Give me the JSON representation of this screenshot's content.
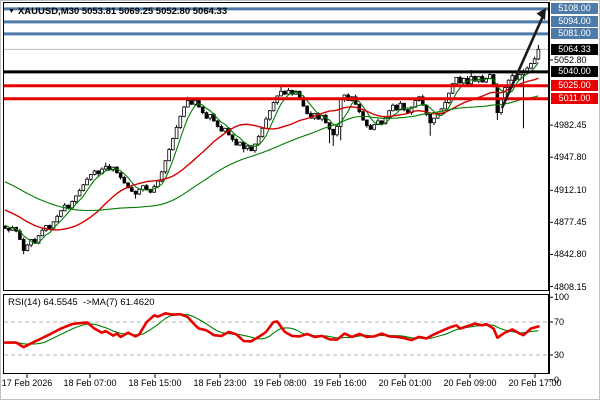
{
  "window": {
    "dropdown_icon": "▼",
    "symbol_period": "XAUUSD,M30",
    "ohlc_text": "5053.81 5069.25 5052.80 5064.33"
  },
  "colors": {
    "resistance": "#4d7aa8",
    "support": "#e80000",
    "pivot": "#000000",
    "bid_line": "#bbbbbb",
    "ma_fast": "#007c00",
    "ma_mid": "#d40000",
    "ma_slow": "#007c00",
    "candle_up": "#ffffff",
    "candle_down": "#000000",
    "candle_stroke": "#000000",
    "rsi_line": "#e80000",
    "rsi_ma": "#007c00",
    "guide_dash": "#b5b5b5",
    "arrow": "#1a1a1a",
    "badge_black": "#000000"
  },
  "chart_data": {
    "type": "candlestick",
    "symbol": "XAUUSD",
    "timeframe": "M30",
    "current_bar": {
      "open": 5053.81,
      "high": 5069.25,
      "low": 5052.8,
      "close": 5064.33
    },
    "levels": [
      {
        "price": 5108.0,
        "label": "5108.00",
        "kind": "resistance"
      },
      {
        "price": 5094.0,
        "label": "5094.00",
        "kind": "resistance"
      },
      {
        "price": 5081.0,
        "label": "5081.00",
        "kind": "resistance"
      },
      {
        "price": 5040.0,
        "label": "5040.00",
        "kind": "pivot"
      },
      {
        "price": 5025.0,
        "label": "5025.00",
        "kind": "support"
      },
      {
        "price": 5011.0,
        "label": "5011.00",
        "kind": "support"
      }
    ],
    "current_price_badge": {
      "price": 5064.33,
      "label": "5064.33"
    },
    "y_ticks": [
      "5052.80",
      "4982.45",
      "4947.80",
      "4912.10",
      "4877.45",
      "4842.80",
      "4808.15"
    ],
    "x_labels": [
      "17 Feb 2026",
      "18 Feb 07:00",
      "18 Feb 15:00",
      "18 Feb 23:00",
      "19 Feb 08:00",
      "19 Feb 16:00",
      "20 Feb 01:00",
      "20 Feb 09:00",
      "20 Feb 17:00"
    ],
    "closes": [
      4871,
      4869,
      4872,
      4868,
      4859,
      4847,
      4853,
      4859,
      4855,
      4863,
      4869,
      4874,
      4871,
      4878,
      4884,
      4890,
      4896,
      4893,
      4900,
      4906,
      4912,
      4918,
      4924,
      4929,
      4933,
      4930,
      4935,
      4938,
      4934,
      4937,
      4931,
      4926,
      4920,
      4915,
      4911,
      4908,
      4913,
      4917,
      4913,
      4910,
      4916,
      4922,
      4932,
      4944,
      4956,
      4968,
      4980,
      4992,
      5002,
      5009,
      5005,
      5009,
      5002,
      4996,
      4990,
      4994,
      4987,
      4981,
      4976,
      4979,
      4972,
      4967,
      4961,
      4964,
      4957,
      4960,
      4955,
      4962,
      4970,
      4979,
      4989,
      4998,
      5007,
      5014,
      5019,
      5016,
      5020,
      5016,
      5019,
      5012,
      5003,
      4995,
      4990,
      4995,
      4989,
      4993,
      4985,
      4978,
      4972,
      4981,
      5010,
      5015,
      5009,
      5013,
      5005,
      4997,
      4988,
      4982,
      4978,
      4983,
      4987,
      4984,
      4991,
      4998,
      5004,
      4999,
      5006,
      4999,
      4996,
      5002,
      5009,
      5013,
      5004,
      4994,
      4985,
      4990,
      4995,
      5000,
      5007,
      5017,
      5027,
      5034,
      5028,
      5033,
      5027,
      5035,
      5030,
      5035,
      5029,
      5033,
      5037,
      5025,
      4996,
      5010,
      5023,
      5031,
      5036,
      5032,
      5037,
      5039,
      5044,
      5049,
      5054,
      5064.33
    ],
    "open_overrides": {
      "143": 5053.81
    },
    "wick_overrides": {
      "5": [
        4861,
        4843
      ],
      "27": [
        4942,
        4933
      ],
      "35": [
        4912,
        4903
      ],
      "49": [
        5013,
        5004
      ],
      "64": [
        4961,
        4953
      ],
      "74": [
        5024,
        5015
      ],
      "87": [
        4980,
        4963
      ],
      "88": [
        4974,
        4960
      ],
      "90": [
        5012,
        4966
      ],
      "114": [
        4991,
        4971
      ],
      "125": [
        5042,
        5026
      ],
      "132": [
        5028,
        4988
      ],
      "139": [
        5043,
        4979
      ],
      "143": [
        5069.25,
        5052.8
      ]
    },
    "moving_averages": [
      {
        "name": "MA fast",
        "period": 5,
        "color_key": "ma_fast",
        "width": 1.1
      },
      {
        "name": "MA mid",
        "period": 21,
        "color_key": "ma_mid",
        "width": 1.4
      },
      {
        "name": "MA slow",
        "period": 50,
        "color_key": "ma_slow",
        "width": 1.1
      }
    ],
    "trend_arrow": {
      "direction": "up",
      "target_price": 5108.0
    },
    "rsi": {
      "label": "RSI(14) 64.5545  ->MA(7) 61.4620",
      "period": 14,
      "value": 64.5545,
      "ma_period": 7,
      "ma_value": 61.462,
      "scale_ticks": [
        "100",
        "70",
        "30",
        "0"
      ],
      "guide_levels": [
        70,
        30
      ],
      "points": [
        [
          0,
          45
        ],
        [
          3,
          45
        ],
        [
          5,
          39.5
        ],
        [
          7,
          44
        ],
        [
          12,
          55
        ],
        [
          15,
          62
        ],
        [
          18,
          67.5
        ],
        [
          22,
          69.5
        ],
        [
          24,
          62
        ],
        [
          26,
          57
        ],
        [
          27,
          59
        ],
        [
          29,
          53.5
        ],
        [
          30,
          56
        ],
        [
          31,
          52
        ],
        [
          33,
          57
        ],
        [
          35,
          52.5
        ],
        [
          36,
          55
        ],
        [
          38,
          70
        ],
        [
          40,
          78
        ],
        [
          41,
          76.5
        ],
        [
          43,
          80.5
        ],
        [
          45,
          79
        ],
        [
          47,
          79.5
        ],
        [
          49,
          76
        ],
        [
          51,
          66
        ],
        [
          52,
          62
        ],
        [
          54,
          60
        ],
        [
          56,
          54
        ],
        [
          58,
          53
        ],
        [
          60,
          58
        ],
        [
          62,
          55
        ],
        [
          64,
          47
        ],
        [
          66,
          46.5
        ],
        [
          68,
          52
        ],
        [
          70,
          58
        ],
        [
          72,
          70
        ],
        [
          73,
          70.5
        ],
        [
          75,
          58
        ],
        [
          77,
          53
        ],
        [
          79,
          52.5
        ],
        [
          81,
          55.5
        ],
        [
          83,
          52
        ],
        [
          85,
          53
        ],
        [
          87,
          49
        ],
        [
          89,
          48.5
        ],
        [
          91,
          56
        ],
        [
          93,
          52
        ],
        [
          95,
          55.5
        ],
        [
          97,
          52
        ],
        [
          99,
          52.5
        ],
        [
          101,
          56
        ],
        [
          103,
          52.5
        ],
        [
          105,
          52
        ],
        [
          107,
          50.5
        ],
        [
          109,
          48
        ],
        [
          111,
          52
        ],
        [
          113,
          50
        ],
        [
          115,
          55
        ],
        [
          117,
          59
        ],
        [
          119,
          63
        ],
        [
          121,
          66
        ],
        [
          122,
          62
        ],
        [
          124,
          65
        ],
        [
          126,
          68
        ],
        [
          128,
          66
        ],
        [
          129,
          67.5
        ],
        [
          131,
          62
        ],
        [
          132,
          51
        ],
        [
          134,
          57
        ],
        [
          136,
          61
        ],
        [
          138,
          56
        ],
        [
          139,
          54
        ],
        [
          141,
          62
        ],
        [
          143,
          64.55
        ]
      ]
    }
  }
}
